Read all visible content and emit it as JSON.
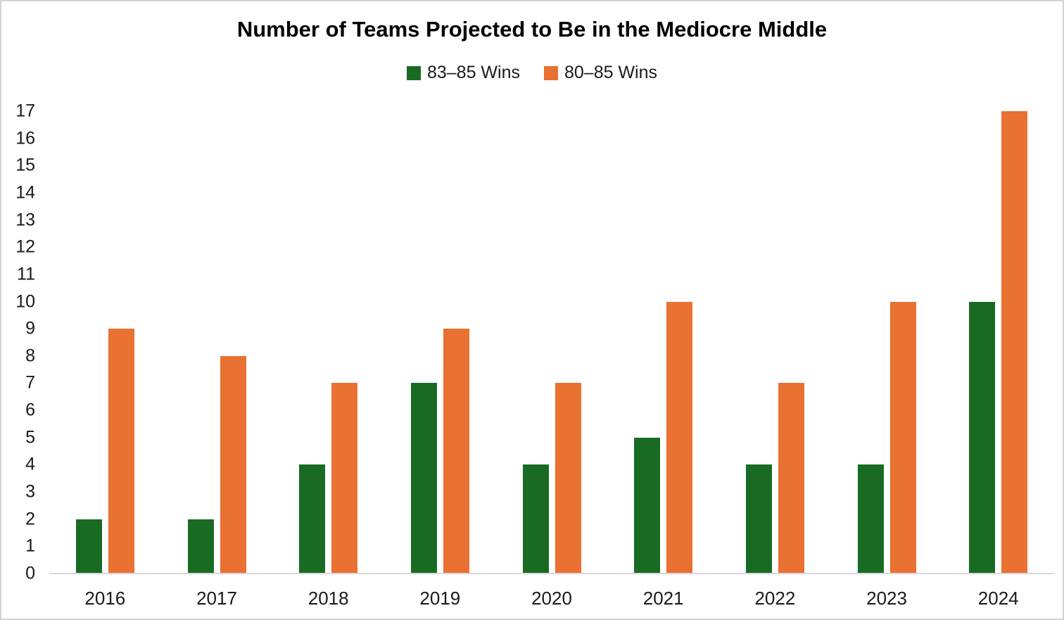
{
  "chart_data": {
    "type": "bar",
    "title": "Number of Teams Projected to Be in the Mediocre Middle",
    "categories": [
      "2016",
      "2017",
      "2018",
      "2019",
      "2020",
      "2021",
      "2022",
      "2023",
      "2024"
    ],
    "series": [
      {
        "name": "83–85 Wins",
        "color": "#196B24",
        "values": [
          2,
          2,
          4,
          7,
          4,
          5,
          4,
          4,
          10
        ]
      },
      {
        "name": "80–85 Wins",
        "color": "#E97132",
        "values": [
          9,
          8,
          7,
          9,
          7,
          10,
          7,
          10,
          17
        ]
      }
    ],
    "xlabel": "",
    "ylabel": "",
    "ylim": [
      0,
      17
    ],
    "y_tick_step": 1,
    "y_tick_labels": [
      "0",
      "1",
      "2",
      "3",
      "4",
      "5",
      "6",
      "7",
      "8",
      "9",
      "10",
      "11",
      "12",
      "13",
      "14",
      "15",
      "16",
      "17"
    ],
    "grid": false,
    "legend_position": "top-center",
    "axis_line_color": "#D9D9D9",
    "text_color": "#1A1A1A",
    "background_color": "#FFFFFF",
    "frame_border_color": "#D2D2D2"
  }
}
